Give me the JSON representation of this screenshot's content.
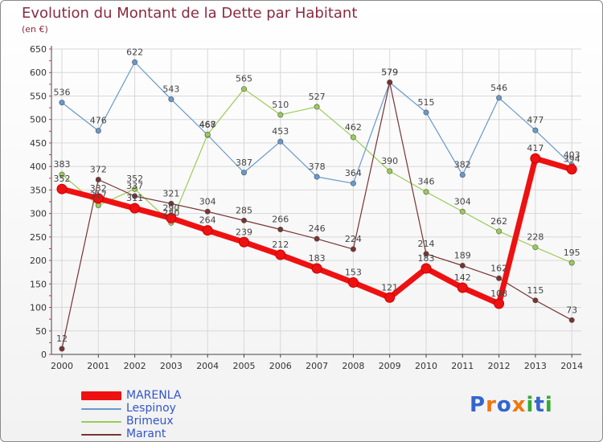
{
  "chart_data": {
    "type": "line",
    "title": "Evolution du Montant de la Dette par Habitant",
    "subtitle": "(en €)",
    "x": [
      "2000",
      "2001",
      "2002",
      "2003",
      "2004",
      "2005",
      "2006",
      "2007",
      "2008",
      "2009",
      "2010",
      "2011",
      "2012",
      "2013",
      "2014"
    ],
    "ylim": [
      0,
      650
    ],
    "yticks": [
      0,
      50,
      100,
      150,
      200,
      250,
      300,
      350,
      400,
      450,
      500,
      550,
      600,
      650
    ],
    "grid": true,
    "legend_position": "bottom-left",
    "series": [
      {
        "name": "MARENLA",
        "color": "#ee1111",
        "values": [
          352,
          332,
          311,
          290,
          264,
          239,
          212,
          183,
          153,
          121,
          183,
          142,
          108,
          417,
          394
        ]
      },
      {
        "name": "Lespinoy",
        "color": "#6699cc",
        "values": [
          536,
          476,
          622,
          543,
          467,
          387,
          453,
          378,
          364,
          579,
          515,
          382,
          546,
          477,
          403
        ]
      },
      {
        "name": "Brimeux",
        "color": "#99cc55",
        "values": [
          383,
          317,
          352,
          280,
          468,
          565,
          510,
          527,
          462,
          390,
          346,
          304,
          262,
          228,
          195
        ]
      },
      {
        "name": "Marant",
        "color": "#773333",
        "values": [
          12,
          372,
          337,
          321,
          304,
          285,
          266,
          246,
          224,
          579,
          214,
          189,
          162,
          115,
          73
        ]
      }
    ]
  },
  "logo": {
    "text": "Proxiti",
    "letters": [
      "P",
      "r",
      "o",
      "x",
      "i",
      "t",
      "i"
    ],
    "colors": [
      "#3366cc",
      "#ee7711",
      "#3366cc",
      "#ee7711",
      "#33aa33",
      "#3366cc",
      "#33aa33"
    ]
  }
}
